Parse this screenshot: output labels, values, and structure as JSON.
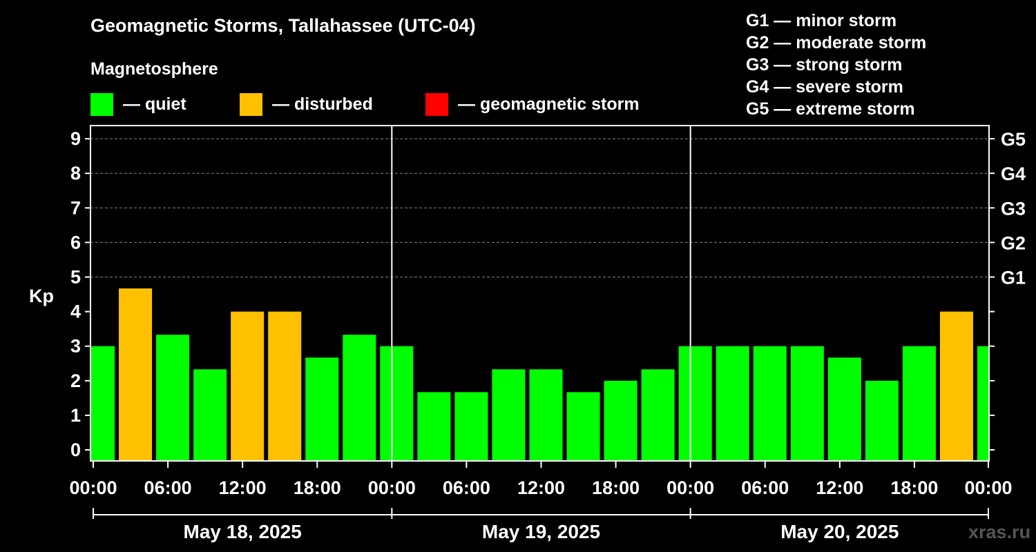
{
  "header": {
    "title": "Geomagnetic Storms, Tallahassee (UTC-04)",
    "subtitle": "Magnetosphere"
  },
  "legend": [
    {
      "label": "— quiet",
      "color": "#00ff00"
    },
    {
      "label": "— disturbed",
      "color": "#ffc000"
    },
    {
      "label": "— geomagnetic storm",
      "color": "#ff0000"
    }
  ],
  "storm_scale": [
    "G1 — minor storm",
    "G2 — moderate storm",
    "G3 — strong storm",
    "G4 — severe storm",
    "G5 — extreme storm"
  ],
  "watermark": "xras.ru",
  "chart_data": {
    "type": "bar",
    "ylabel": "Kp",
    "ylim": [
      0,
      9
    ],
    "yticks": [
      0,
      1,
      2,
      3,
      4,
      5,
      6,
      7,
      8,
      9
    ],
    "right_axis_labels": [
      {
        "kp": 5,
        "label": "G1"
      },
      {
        "kp": 6,
        "label": "G2"
      },
      {
        "kp": 7,
        "label": "G3"
      },
      {
        "kp": 8,
        "label": "G4"
      },
      {
        "kp": 9,
        "label": "G5"
      }
    ],
    "grid": true,
    "xlim_hours": [
      0,
      72
    ],
    "xtick_hours": [
      0,
      6,
      12,
      18,
      24,
      30,
      36,
      42,
      48,
      54,
      60,
      66,
      72
    ],
    "xtick_labels": [
      "00:00",
      "06:00",
      "12:00",
      "18:00",
      "00:00",
      "06:00",
      "12:00",
      "18:00",
      "00:00",
      "06:00",
      "12:00",
      "18:00",
      "00:00"
    ],
    "day_labels": [
      "May 18, 2025",
      "May 19, 2025",
      "May 20, 2025"
    ],
    "day_start_hours": [
      0,
      24,
      48,
      72
    ],
    "bar_start_hours": [
      -1,
      2,
      5,
      8,
      11,
      14,
      17,
      20,
      23,
      26,
      29,
      32,
      35,
      38,
      41,
      44,
      47,
      50,
      53,
      56,
      59,
      62,
      65,
      68,
      71
    ],
    "bar_duration_hours": 3,
    "values": [
      3.0,
      4.67,
      3.33,
      2.33,
      4.0,
      4.0,
      2.67,
      3.33,
      3.0,
      1.67,
      1.67,
      2.33,
      2.33,
      1.67,
      2.0,
      2.33,
      3.0,
      3.0,
      3.0,
      3.0,
      2.67,
      2.0,
      3.0,
      4.0,
      3.0
    ],
    "status": [
      "quiet",
      "disturbed",
      "quiet",
      "quiet",
      "disturbed",
      "disturbed",
      "quiet",
      "quiet",
      "quiet",
      "quiet",
      "quiet",
      "quiet",
      "quiet",
      "quiet",
      "quiet",
      "quiet",
      "quiet",
      "quiet",
      "quiet",
      "quiet",
      "quiet",
      "quiet",
      "quiet",
      "disturbed",
      "quiet"
    ],
    "status_colors": {
      "quiet": "#00ff00",
      "disturbed": "#ffc000",
      "storm": "#ff0000"
    }
  }
}
